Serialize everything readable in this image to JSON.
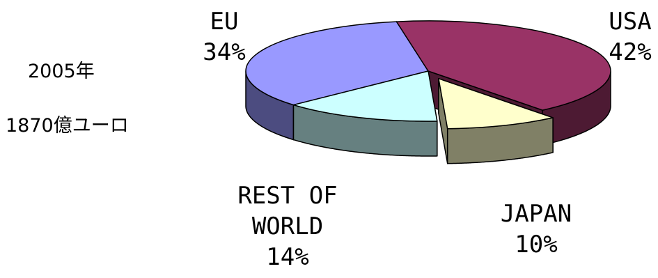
{
  "notes": {
    "year": "2005年",
    "total": "1870億ユーロ"
  },
  "chart_data": {
    "type": "pie",
    "style": "3d-exploded",
    "categories": [
      "USA",
      "JAPAN",
      "REST OF WORLD",
      "EU"
    ],
    "values": [
      42,
      10,
      14,
      34
    ],
    "value_labels": [
      "42%",
      "10%",
      "14%",
      "34%"
    ],
    "label_lines": [
      [
        "USA",
        "42%"
      ],
      [
        "JAPAN",
        "10%"
      ],
      [
        "REST OF",
        "WORLD",
        "14%"
      ],
      [
        "EU",
        "34%"
      ]
    ],
    "colors": {
      "USA": {
        "top": "#993366",
        "side": "#4D1A33"
      },
      "JAPAN": {
        "top": "#FFFFCC",
        "side": "#808066"
      },
      "REST OF WORLD": {
        "top": "#CCFFFF",
        "side": "#668080"
      },
      "EU": {
        "top": "#9999FF",
        "side": "#4C4C80"
      }
    },
    "exploded": [
      "JAPAN"
    ],
    "title": "",
    "legend": "none"
  }
}
